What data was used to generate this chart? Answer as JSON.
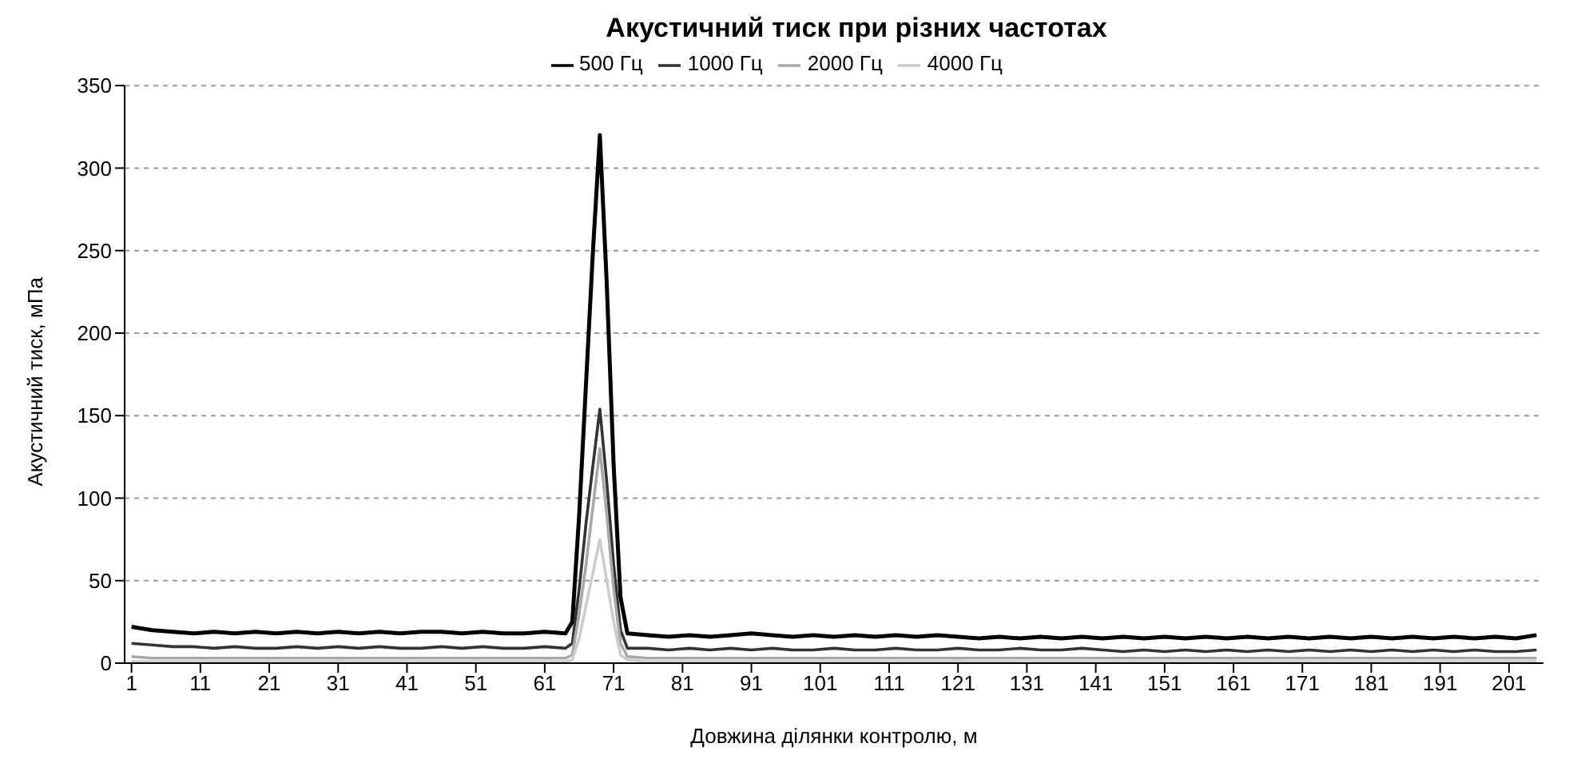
{
  "chart_data": {
    "type": "line",
    "title": "Акустичний тиск при різних частотах",
    "xlabel": "Довжина ділянки контролю, м",
    "ylabel": "Акустичний тиск, мПа",
    "x": [
      1,
      4,
      7,
      10,
      13,
      16,
      19,
      22,
      25,
      28,
      31,
      34,
      37,
      40,
      43,
      46,
      49,
      52,
      55,
      58,
      61,
      64,
      65,
      66,
      67,
      68,
      69,
      70,
      71,
      72,
      73,
      76,
      79,
      82,
      85,
      88,
      91,
      94,
      97,
      100,
      103,
      106,
      109,
      112,
      115,
      118,
      121,
      124,
      127,
      130,
      133,
      136,
      139,
      142,
      145,
      148,
      151,
      154,
      157,
      160,
      163,
      166,
      169,
      172,
      175,
      178,
      181,
      184,
      187,
      190,
      193,
      196,
      199,
      202,
      205
    ],
    "series": [
      {
        "name": "500 Гц",
        "color": "#000000",
        "values": [
          22,
          20,
          19,
          18,
          19,
          18,
          19,
          18,
          19,
          18,
          19,
          18,
          19,
          18,
          19,
          19,
          18,
          19,
          18,
          18,
          19,
          18,
          25,
          90,
          170,
          250,
          320,
          230,
          120,
          40,
          18,
          17,
          16,
          17,
          16,
          17,
          18,
          17,
          16,
          17,
          16,
          17,
          16,
          17,
          16,
          17,
          16,
          15,
          16,
          15,
          16,
          15,
          16,
          15,
          16,
          15,
          16,
          15,
          16,
          15,
          16,
          15,
          16,
          15,
          16,
          15,
          16,
          15,
          16,
          15,
          16,
          15,
          16,
          15,
          17
        ]
      },
      {
        "name": "1000 Гц",
        "color": "#333333",
        "values": [
          12,
          11,
          10,
          10,
          9,
          10,
          9,
          9,
          10,
          9,
          10,
          9,
          10,
          9,
          9,
          10,
          9,
          10,
          9,
          9,
          10,
          9,
          12,
          45,
          85,
          120,
          154,
          110,
          60,
          20,
          9,
          9,
          8,
          9,
          8,
          9,
          8,
          9,
          8,
          8,
          9,
          8,
          8,
          9,
          8,
          8,
          9,
          8,
          8,
          9,
          8,
          8,
          9,
          8,
          7,
          8,
          7,
          8,
          7,
          8,
          7,
          8,
          7,
          8,
          7,
          8,
          7,
          8,
          7,
          8,
          7,
          8,
          7,
          7,
          8
        ]
      },
      {
        "name": "2000 Гц",
        "color": "#a8a8a8",
        "values": [
          4,
          3,
          3,
          3,
          3,
          3,
          3,
          3,
          3,
          3,
          3,
          3,
          3,
          3,
          3,
          3,
          3,
          3,
          3,
          3,
          3,
          3,
          5,
          30,
          60,
          95,
          130,
          90,
          45,
          12,
          4,
          3,
          3,
          3,
          3,
          3,
          3,
          3,
          3,
          3,
          3,
          3,
          3,
          3,
          3,
          3,
          3,
          3,
          3,
          3,
          3,
          3,
          3,
          3,
          3,
          3,
          3,
          3,
          3,
          3,
          3,
          3,
          3,
          3,
          3,
          3,
          3,
          3,
          3,
          3,
          3,
          3,
          3,
          3,
          3
        ]
      },
      {
        "name": "4000 Гц",
        "color": "#cccccc",
        "values": [
          1,
          1,
          1,
          1,
          1,
          1,
          1,
          1,
          1,
          1,
          1,
          1,
          1,
          1,
          1,
          1,
          1,
          1,
          1,
          1,
          1,
          1,
          2,
          15,
          35,
          55,
          75,
          50,
          25,
          5,
          2,
          1,
          1,
          1,
          1,
          1,
          1,
          1,
          1,
          1,
          1,
          1,
          1,
          1,
          1,
          1,
          1,
          1,
          1,
          1,
          1,
          1,
          1,
          1,
          1,
          1,
          1,
          1,
          1,
          1,
          1,
          1,
          1,
          1,
          1,
          1,
          1,
          1,
          1,
          1,
          1,
          1,
          1,
          1,
          1
        ]
      }
    ],
    "xlim": [
      0,
      206
    ],
    "xticks": [
      1,
      11,
      21,
      31,
      41,
      51,
      61,
      71,
      81,
      91,
      101,
      111,
      121,
      131,
      141,
      151,
      161,
      171,
      181,
      191,
      201
    ],
    "ylim": [
      0,
      350
    ],
    "yticks": [
      0,
      50,
      100,
      150,
      200,
      250,
      300,
      350
    ],
    "grid": "y",
    "legend": "top",
    "marker": "none",
    "line_style": "solid"
  }
}
